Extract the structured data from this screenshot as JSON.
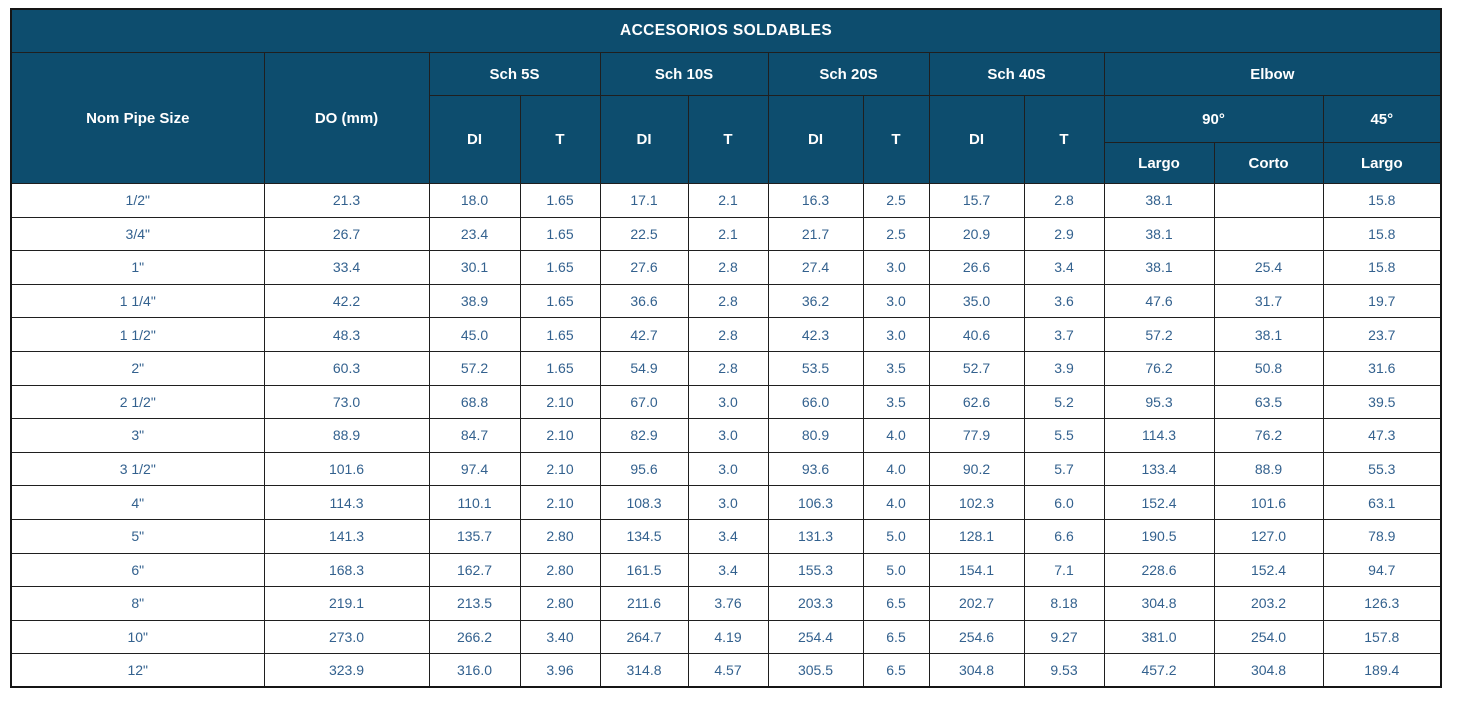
{
  "table": {
    "title": "ACCESORIOS SOLDABLES",
    "columns": {
      "nom_pipe_size": "Nom Pipe Size",
      "do_mm": "DO (mm)",
      "sch_groups": [
        "Sch 5S",
        "Sch 10S",
        "Sch 20S",
        "Sch 40S"
      ],
      "di_label": "DI",
      "t_label": "T",
      "elbow": "Elbow",
      "elbow_90": "90°",
      "elbow_45": "45°",
      "largo": "Largo",
      "corto": "Corto"
    },
    "rows": [
      [
        "1/2\"",
        "21.3",
        "18.0",
        "1.65",
        "17.1",
        "2.1",
        "16.3",
        "2.5",
        "15.7",
        "2.8",
        "38.1",
        "",
        "15.8"
      ],
      [
        "3/4\"",
        "26.7",
        "23.4",
        "1.65",
        "22.5",
        "2.1",
        "21.7",
        "2.5",
        "20.9",
        "2.9",
        "38.1",
        "",
        "15.8"
      ],
      [
        "1\"",
        "33.4",
        "30.1",
        "1.65",
        "27.6",
        "2.8",
        "27.4",
        "3.0",
        "26.6",
        "3.4",
        "38.1",
        "25.4",
        "15.8"
      ],
      [
        "1 1/4\"",
        "42.2",
        "38.9",
        "1.65",
        "36.6",
        "2.8",
        "36.2",
        "3.0",
        "35.0",
        "3.6",
        "47.6",
        "31.7",
        "19.7"
      ],
      [
        "1 1/2\"",
        "48.3",
        "45.0",
        "1.65",
        "42.7",
        "2.8",
        "42.3",
        "3.0",
        "40.6",
        "3.7",
        "57.2",
        "38.1",
        "23.7"
      ],
      [
        "2\"",
        "60.3",
        "57.2",
        "1.65",
        "54.9",
        "2.8",
        "53.5",
        "3.5",
        "52.7",
        "3.9",
        "76.2",
        "50.8",
        "31.6"
      ],
      [
        "2 1/2\"",
        "73.0",
        "68.8",
        "2.10",
        "67.0",
        "3.0",
        "66.0",
        "3.5",
        "62.6",
        "5.2",
        "95.3",
        "63.5",
        "39.5"
      ],
      [
        "3\"",
        "88.9",
        "84.7",
        "2.10",
        "82.9",
        "3.0",
        "80.9",
        "4.0",
        "77.9",
        "5.5",
        "114.3",
        "76.2",
        "47.3"
      ],
      [
        "3 1/2\"",
        "101.6",
        "97.4",
        "2.10",
        "95.6",
        "3.0",
        "93.6",
        "4.0",
        "90.2",
        "5.7",
        "133.4",
        "88.9",
        "55.3"
      ],
      [
        "4\"",
        "114.3",
        "110.1",
        "2.10",
        "108.3",
        "3.0",
        "106.3",
        "4.0",
        "102.3",
        "6.0",
        "152.4",
        "101.6",
        "63.1"
      ],
      [
        "5\"",
        "141.3",
        "135.7",
        "2.80",
        "134.5",
        "3.4",
        "131.3",
        "5.0",
        "128.1",
        "6.6",
        "190.5",
        "127.0",
        "78.9"
      ],
      [
        "6\"",
        "168.3",
        "162.7",
        "2.80",
        "161.5",
        "3.4",
        "155.3",
        "5.0",
        "154.1",
        "7.1",
        "228.6",
        "152.4",
        "94.7"
      ],
      [
        "8\"",
        "219.1",
        "213.5",
        "2.80",
        "211.6",
        "3.76",
        "203.3",
        "6.5",
        "202.7",
        "8.18",
        "304.8",
        "203.2",
        "126.3"
      ],
      [
        "10\"",
        "273.0",
        "266.2",
        "3.40",
        "264.7",
        "4.19",
        "254.4",
        "6.5",
        "254.6",
        "9.27",
        "381.0",
        "254.0",
        "157.8"
      ],
      [
        "12\"",
        "323.9",
        "316.0",
        "3.96",
        "314.8",
        "4.57",
        "305.5",
        "6.5",
        "304.8",
        "9.53",
        "457.2",
        "304.8",
        "189.4"
      ]
    ]
  },
  "colors": {
    "header_bg": "#0d4d6e",
    "header_text": "#ffffff",
    "cell_text": "#33618e",
    "border": "#1f1f1f",
    "page_bg": "#ffffff"
  }
}
